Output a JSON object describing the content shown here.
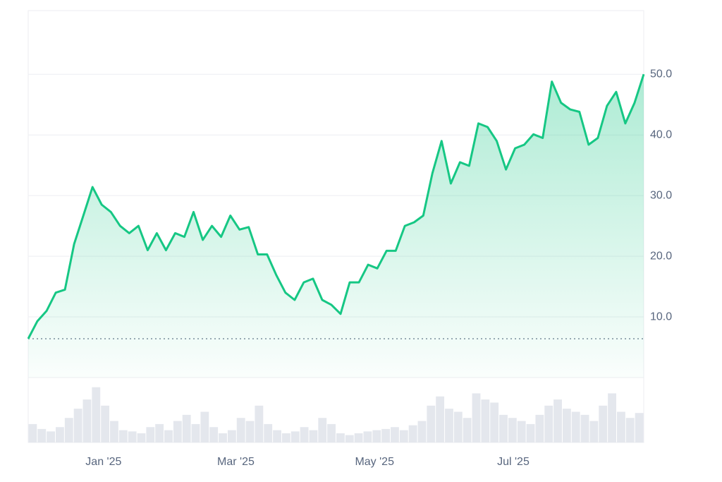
{
  "chart_data": {
    "type": "line",
    "values": [
      6.4,
      9.3,
      11,
      14,
      14.5,
      22,
      26.7,
      31.4,
      28.5,
      27.3,
      25,
      23.8,
      25,
      21,
      23.8,
      21,
      23.8,
      23.2,
      27.3,
      22.7,
      25,
      23.2,
      26.7,
      24.4,
      24.8,
      20.3,
      20.3,
      16.9,
      14,
      12.8,
      15.7,
      16.3,
      12.8,
      12,
      10.5,
      15.7,
      15.7,
      18.6,
      18,
      20.9,
      20.9,
      25,
      25.6,
      26.7,
      33.7,
      39,
      32,
      35.5,
      34.9,
      41.9,
      41.3,
      39,
      34.3,
      37.8,
      38.4,
      40.1,
      39.5,
      48.8,
      45.3,
      44.2,
      43.8,
      38.4,
      39.5,
      44.8,
      47.1,
      41.9,
      45.3,
      50
    ],
    "color": "#16c784",
    "baseline": 6.4,
    "volume": [
      30,
      22,
      18,
      25,
      40,
      55,
      70,
      90,
      60,
      35,
      20,
      18,
      15,
      25,
      30,
      20,
      35,
      45,
      30,
      50,
      25,
      15,
      20,
      40,
      35,
      60,
      30,
      20,
      15,
      18,
      25,
      20,
      40,
      30,
      15,
      12,
      15,
      18,
      20,
      22,
      25,
      20,
      28,
      35,
      60,
      75,
      55,
      50,
      40,
      80,
      70,
      65,
      45,
      40,
      35,
      30,
      45,
      60,
      70,
      55,
      50,
      45,
      35,
      60,
      80,
      50,
      40,
      48
    ],
    "volume_color": "#e4e7ed",
    "volume_lim": [
      0,
      100
    ],
    "xlim": [
      0,
      67
    ],
    "xticks": [
      {
        "value": 8.2,
        "label": "Jan '25"
      },
      {
        "value": 22.6,
        "label": "Mar '25"
      },
      {
        "value": 37.7,
        "label": "May '25"
      },
      {
        "value": 52.8,
        "label": "Jul '25"
      }
    ],
    "ylim": [
      0,
      60.5
    ],
    "yticks": [
      {
        "value": 10,
        "label": "10.0"
      },
      {
        "value": 20,
        "label": "20.0"
      },
      {
        "value": 30,
        "label": "30.0"
      },
      {
        "value": 40,
        "label": "40.0"
      },
      {
        "value": 50,
        "label": "50.0"
      }
    ],
    "grid": true
  }
}
